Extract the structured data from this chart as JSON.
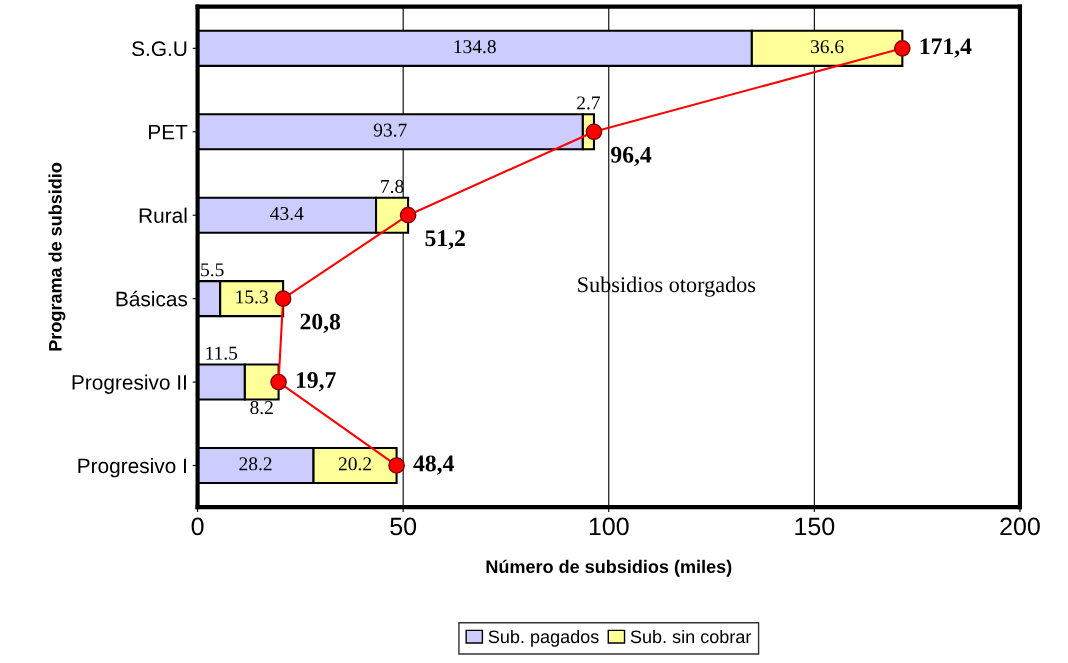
{
  "chart_data": {
    "type": "bar",
    "orientation": "horizontal",
    "stacked": true,
    "categories": [
      "S.G.U",
      "PET",
      "Rural",
      "Básicas",
      "Progresivo II",
      "Progresivo I"
    ],
    "series": [
      {
        "name": "Sub. pagados",
        "color": "#ccccff",
        "values": [
          134.8,
          93.7,
          43.4,
          5.5,
          11.5,
          28.2
        ]
      },
      {
        "name": "Sub. sin cobrar",
        "color": "#ffff99",
        "values": [
          36.6,
          2.7,
          7.8,
          15.3,
          8.2,
          20.2
        ]
      },
      {
        "type": "line",
        "color": "#ff0000",
        "marker": "circle",
        "values": [
          171.4,
          96.4,
          51.2,
          20.8,
          19.7,
          48.4
        ],
        "value_labels": [
          "171,4",
          "96,4",
          "51,2",
          "20,8",
          "19,7",
          "48,4"
        ]
      }
    ],
    "data_labels": true,
    "xlim": [
      0,
      200
    ],
    "xticks": [
      0,
      50,
      100,
      150,
      200
    ],
    "grid": "x",
    "legend": "bottom",
    "xlabel": "Número de subsidios (miles)",
    "ylabel": "Programa de subsidio",
    "annotations": [
      "Subsidios otorgados"
    ]
  }
}
